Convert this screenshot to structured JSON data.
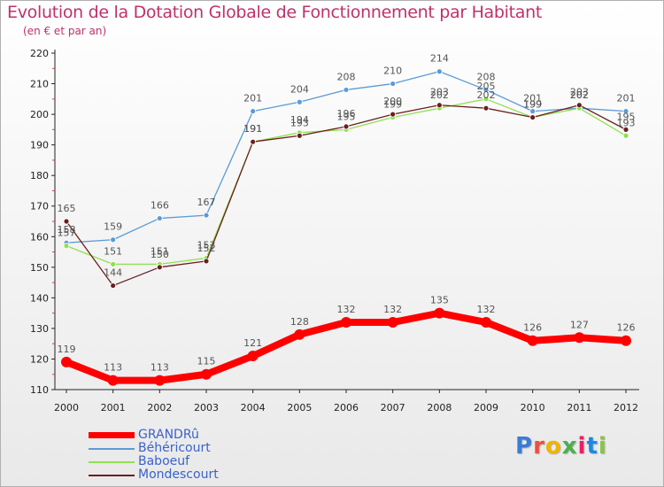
{
  "title": "Evolution de la Dotation Globale de Fonctionnement par Habitant",
  "subtitle": "(en € et par an)",
  "logo_text": "Proxiti",
  "chart_data": {
    "type": "line",
    "title": "Evolution de la Dotation Globale de Fonctionnement par Habitant",
    "subtitle": "(en € et par an)",
    "xlabel": "",
    "ylabel": "",
    "ylim": [
      110,
      220
    ],
    "yticks": [
      110,
      120,
      130,
      140,
      150,
      160,
      170,
      180,
      190,
      200,
      210,
      220
    ],
    "grid": false,
    "legend_position": "bottom-left",
    "x": [
      "2000",
      "2001",
      "2002",
      "2003",
      "2004",
      "2005",
      "2006",
      "2007",
      "2008",
      "2009",
      "2010",
      "2011",
      "2012"
    ],
    "series": [
      {
        "name": "GRANDRû",
        "color": "#ff0000",
        "values": [
          119,
          113,
          113,
          115,
          121,
          128,
          132,
          132,
          135,
          132,
          126,
          127,
          126
        ]
      },
      {
        "name": "Béhéricourt",
        "color": "#5b9bd5",
        "values": [
          158,
          159,
          166,
          167,
          201,
          204,
          208,
          210,
          214,
          208,
          201,
          202,
          201
        ]
      },
      {
        "name": "Baboeuf",
        "color": "#90e050",
        "values": [
          157,
          151,
          151,
          153,
          191,
          194,
          195,
          199,
          202,
          205,
          199,
          202,
          193
        ]
      },
      {
        "name": "Mondescourt",
        "color": "#6b1f1f",
        "values": [
          165,
          144,
          150,
          152,
          191,
          193,
          196,
          200,
          203,
          202,
          199,
          203,
          195
        ]
      }
    ]
  }
}
